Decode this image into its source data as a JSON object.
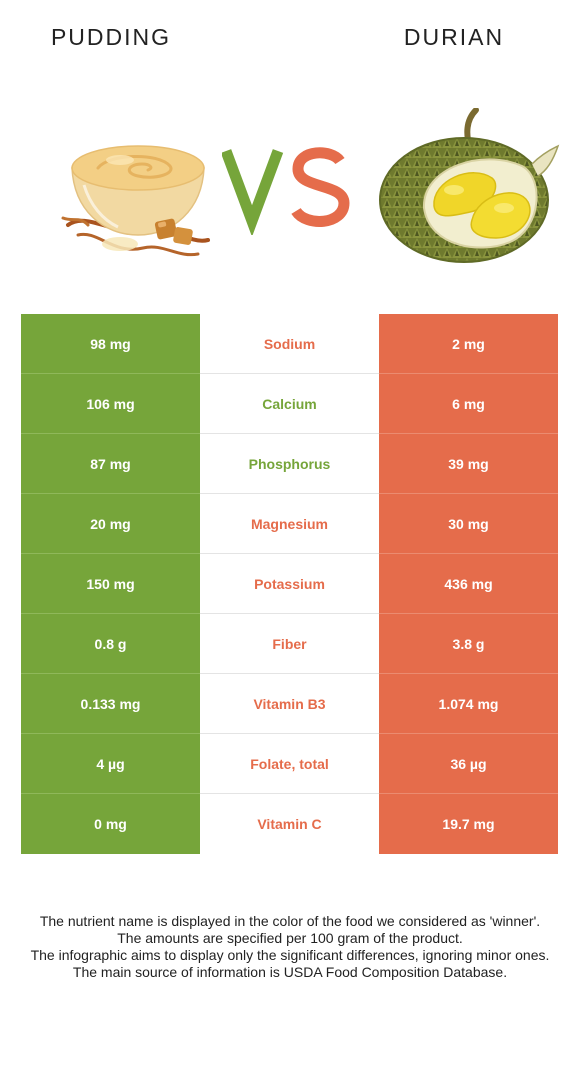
{
  "header": {
    "left_food": "PUDDING",
    "right_food": "DURIAN",
    "vs": "VS"
  },
  "colors": {
    "pudding": "#76a53a",
    "durian": "#e56c4b"
  },
  "nutrients": [
    {
      "name": "Sodium",
      "left": "98 mg",
      "right": "2 mg",
      "winner": "durian"
    },
    {
      "name": "Calcium",
      "left": "106 mg",
      "right": "6 mg",
      "winner": "pudding"
    },
    {
      "name": "Phosphorus",
      "left": "87 mg",
      "right": "39 mg",
      "winner": "pudding"
    },
    {
      "name": "Magnesium",
      "left": "20 mg",
      "right": "30 mg",
      "winner": "durian"
    },
    {
      "name": "Potassium",
      "left": "150 mg",
      "right": "436 mg",
      "winner": "durian"
    },
    {
      "name": "Fiber",
      "left": "0.8 g",
      "right": "3.8 g",
      "winner": "durian"
    },
    {
      "name": "Vitamin B3",
      "left": "0.133 mg",
      "right": "1.074 mg",
      "winner": "durian"
    },
    {
      "name": "Folate, total",
      "left": "4 µg",
      "right": "36 µg",
      "winner": "durian"
    },
    {
      "name": "Vitamin C",
      "left": "0 mg",
      "right": "19.7 mg",
      "winner": "durian"
    }
  ],
  "footnote": [
    "The nutrient name is displayed in the color of the food we considered as 'winner'.",
    "The amounts are specified per 100 gram of the product.",
    "The infographic aims to display only the significant differences, ignoring minor ones.",
    "The main source of information is USDA Food Composition Database."
  ]
}
